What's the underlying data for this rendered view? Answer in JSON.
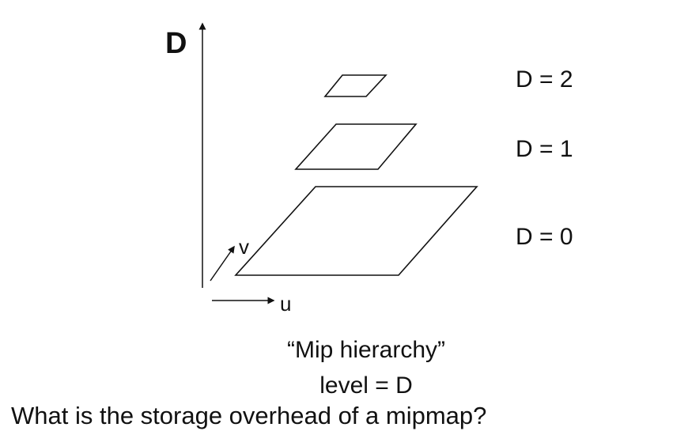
{
  "axes": {
    "vertical_label": "D",
    "u_label": "u",
    "v_label": "v"
  },
  "levels": [
    {
      "label": "D = 2"
    },
    {
      "label": "D = 1"
    },
    {
      "label": "D = 0"
    }
  ],
  "caption": {
    "title": "“Mip hierarchy”",
    "subtitle": "level = D"
  },
  "question": "What is the storage overhead of a mipmap?",
  "colors": {
    "stroke": "#111111",
    "background": "#ffffff"
  }
}
